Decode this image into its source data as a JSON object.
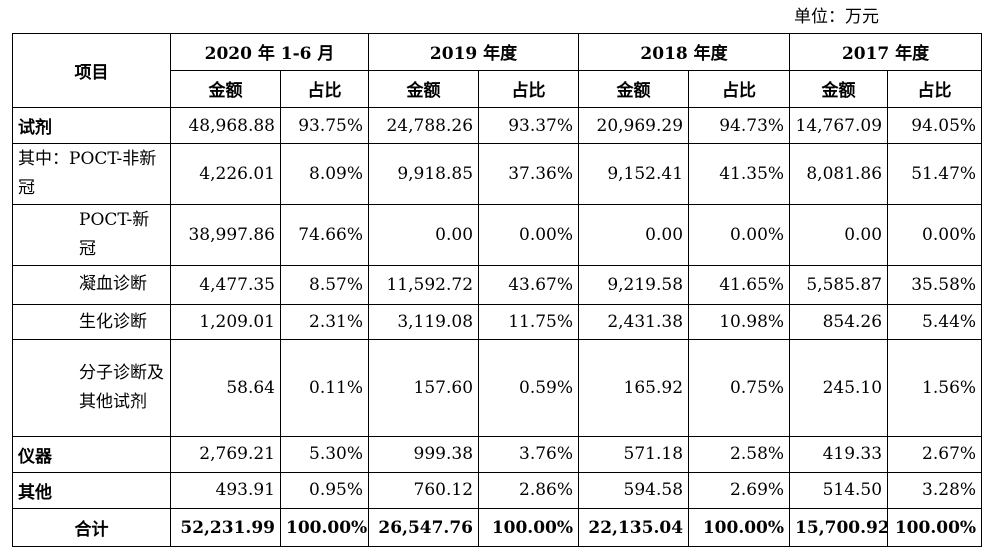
{
  "unit_label": "单位：万元",
  "header": {
    "item": "项目",
    "periods": [
      "2020 年 1-6 月",
      "2019 年度",
      "2018 年度",
      "2017 年度"
    ],
    "amount": "金额",
    "ratio": "占比"
  },
  "rows": [
    {
      "label": "试剂",
      "values": [
        "48,968.88",
        "93.75%",
        "24,788.26",
        "93.37%",
        "20,969.29",
        "94.73%",
        "14,767.09",
        "94.05%"
      ]
    },
    {
      "label": "其中：POCT-非新冠",
      "values": [
        "4,226.01",
        "8.09%",
        "9,918.85",
        "37.36%",
        "9,152.41",
        "41.35%",
        "8,081.86",
        "51.47%"
      ]
    },
    {
      "label": "POCT-新冠",
      "values": [
        "38,997.86",
        "74.66%",
        "0.00",
        "0.00%",
        "0.00",
        "0.00%",
        "0.00",
        "0.00%"
      ]
    },
    {
      "label": "凝血诊断",
      "values": [
        "4,477.35",
        "8.57%",
        "11,592.72",
        "43.67%",
        "9,219.58",
        "41.65%",
        "5,585.87",
        "35.58%"
      ]
    },
    {
      "label": "生化诊断",
      "values": [
        "1,209.01",
        "2.31%",
        "3,119.08",
        "11.75%",
        "2,431.38",
        "10.98%",
        "854.26",
        "5.44%"
      ]
    },
    {
      "label": "分子诊断及其他试剂",
      "values": [
        "58.64",
        "0.11%",
        "157.60",
        "0.59%",
        "165.92",
        "0.75%",
        "245.10",
        "1.56%"
      ]
    },
    {
      "label": "仪器",
      "values": [
        "2,769.21",
        "5.30%",
        "999.38",
        "3.76%",
        "571.18",
        "2.58%",
        "419.33",
        "2.67%"
      ]
    },
    {
      "label": "其他",
      "values": [
        "493.91",
        "0.95%",
        "760.12",
        "2.86%",
        "594.58",
        "2.69%",
        "514.50",
        "3.28%"
      ]
    },
    {
      "label": "合计",
      "values": [
        "52,231.99",
        "100.00%",
        "26,547.76",
        "100.00%",
        "22,135.04",
        "100.00%",
        "15,700.92",
        "100.00%"
      ]
    }
  ]
}
